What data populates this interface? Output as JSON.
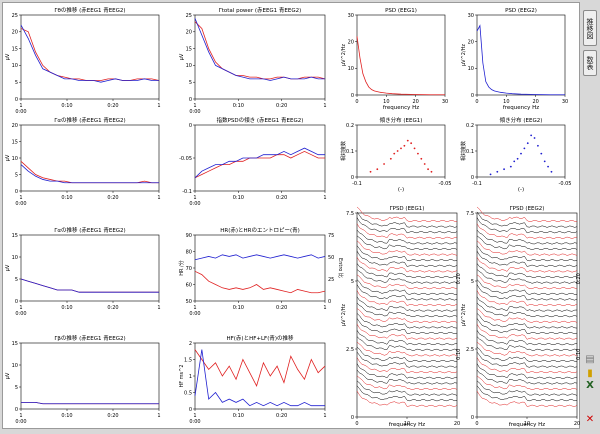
{
  "panels": [
    {
      "id": "p1",
      "title": "Γθの推移 (赤EEG1 青EEG2)",
      "ylabel": "μV",
      "yticks": [
        "0",
        "5",
        "10",
        "15",
        "20",
        "25"
      ],
      "xticks": [
        "1",
        "0:10",
        "0:20",
        "1"
      ],
      "xl2": [
        "0:00",
        "",
        "",
        ""
      ]
    },
    {
      "id": "p2",
      "title": "Γtotal power (赤EEG1 青EEG2)",
      "ylabel": "μV",
      "yticks": [
        "0",
        "5",
        "10",
        "15",
        "20",
        "25"
      ],
      "xticks": [
        "1",
        "0:10",
        "0:20",
        "1"
      ],
      "xl2": [
        "0:00",
        "",
        "",
        ""
      ]
    },
    {
      "id": "p3",
      "title": "Γαの推移 (赤EEG1 青EEG2)",
      "ylabel": "μV",
      "yticks": [
        "0",
        "5",
        "10",
        "15",
        "20"
      ],
      "xticks": [
        "1",
        "0:10",
        "0:20",
        "1"
      ],
      "xl2": [
        "0:00",
        "",
        "",
        ""
      ]
    },
    {
      "id": "p4",
      "title": "指数PSDの傾き (赤EEG1 青EEG2)",
      "ylabel": "",
      "yticks": [
        "-0.1",
        "-0.05",
        "0"
      ],
      "xticks": [
        "1",
        "0:10",
        "0:20",
        "1"
      ],
      "xl2": [
        "0:00",
        "",
        "",
        ""
      ]
    },
    {
      "id": "p5",
      "title": "Γαの推移 (赤EEG1 青EEG2)",
      "ylabel": "μV",
      "yticks": [
        "0",
        "5",
        "10",
        "15"
      ],
      "xticks": [
        "1",
        "0:10",
        "0:20",
        "1"
      ],
      "xl2": [
        "0:00",
        "",
        "",
        ""
      ]
    },
    {
      "id": "p6",
      "title": "HR(赤)とHRのエントロピー(青)",
      "ylabel": "HR /分",
      "ylabel2": "Entro 比",
      "yticks": [
        "50",
        "60",
        "70",
        "80",
        "90"
      ],
      "yticks2": [
        "0",
        "25",
        "50",
        "75"
      ],
      "xticks": [
        "1",
        "0:10",
        "0:20",
        "1"
      ],
      "xl2": [
        "0:00",
        "",
        "",
        ""
      ]
    },
    {
      "id": "p7",
      "title": "Γβの推移 (赤EEG1 青EEG2)",
      "ylabel": "μV",
      "yticks": [
        "0",
        "5",
        "10",
        "15"
      ],
      "xticks": [
        "1",
        "0:10",
        "0:20",
        "1"
      ],
      "xl2": [
        "0:00",
        "",
        "",
        ""
      ]
    },
    {
      "id": "p8",
      "title": "HF(赤)とHF+LF(青)の推移",
      "ylabel": "HF ms^2",
      "yticks": [
        "0",
        "0.5",
        "1",
        "1.5",
        "2"
      ],
      "xticks": [
        "1",
        "0:10",
        "0:20",
        "1"
      ],
      "xl2": [
        "0:00",
        "",
        "",
        ""
      ]
    },
    {
      "id": "p9",
      "title": "PSD (EEG1)",
      "ylabel": "μV^2/Hz",
      "xlabel": "frequency Hz",
      "yticks": [
        "0",
        "10",
        "20",
        "30"
      ],
      "xticks": [
        "0",
        "10",
        "20",
        "30"
      ]
    },
    {
      "id": "p10",
      "title": "PSD (EEG2)",
      "ylabel": "μV^2/Hz",
      "xlabel": "frequency Hz",
      "yticks": [
        "0",
        "10",
        "20",
        "30"
      ],
      "xticks": [
        "0",
        "10",
        "20",
        "30"
      ]
    },
    {
      "id": "p11",
      "title": "傾き分布 (EEG1)",
      "ylabel": "相対度数",
      "xlabel": "(-)",
      "yticks": [
        "0",
        "0.1",
        "0.2"
      ],
      "xticks": [
        "-0.1",
        "-0.05"
      ]
    },
    {
      "id": "p12",
      "title": "傾き分布 (EEG2)",
      "ylabel": "相対度数",
      "xlabel": "(-)",
      "yticks": [
        "0",
        "0.1",
        "0.2"
      ],
      "xticks": [
        "-0.1",
        "-0.05"
      ]
    },
    {
      "id": "p13",
      "title": "ΓPSD (EEG1)",
      "ylabel": "μV^2/Hz",
      "xlabel": "frequency Hz",
      "yticks": [
        "0",
        "2.5",
        "5",
        "7.5"
      ],
      "xticks": [
        "0",
        "10",
        "20"
      ],
      "ztitle": "0:10",
      "ztitle2": "0:20"
    },
    {
      "id": "p14",
      "title": "ΓPSD (EEG2)",
      "ylabel": "μV^2/Hz",
      "xlabel": "frequency Hz",
      "yticks": [
        "0",
        "2.5",
        "5",
        "7.5"
      ],
      "xticks": [
        "0",
        "10",
        "20"
      ],
      "ztitle": "0:10",
      "ztitle2": "0:20"
    }
  ],
  "sidebar": {
    "tab1": "推移図",
    "tab2": "数表"
  },
  "colors": {
    "eeg1": "#e02020",
    "eeg2": "#2020d0",
    "axis": "#000000"
  },
  "chart_data": [
    {
      "type": "line",
      "panel": "p1",
      "series": [
        {
          "color": "red",
          "values": [
            21,
            20,
            14,
            10,
            8,
            7,
            6.5,
            6,
            6,
            5.5,
            5.5,
            5.5,
            6,
            6,
            5.5,
            5.5,
            6,
            6,
            6,
            5.5
          ]
        },
        {
          "color": "blue",
          "values": [
            22,
            18,
            13,
            9,
            8,
            7,
            6,
            6,
            5.5,
            5.5,
            5.5,
            5,
            5.5,
            6,
            5.5,
            5.5,
            5.5,
            6,
            5.5,
            5.5
          ]
        }
      ],
      "ylim": [
        0,
        25
      ]
    },
    {
      "type": "line",
      "panel": "p2",
      "series": [
        {
          "color": "red",
          "values": [
            23,
            21,
            15,
            11,
            9,
            8,
            7,
            7,
            6.5,
            6.5,
            6,
            6,
            6.5,
            6.5,
            6,
            6,
            6.5,
            6.5,
            6.5,
            6
          ]
        },
        {
          "color": "blue",
          "values": [
            24,
            19,
            14,
            10,
            9,
            8,
            7,
            6.5,
            6,
            6,
            6,
            5.5,
            6,
            6.5,
            6,
            6,
            6,
            6.5,
            6,
            6
          ]
        }
      ],
      "ylim": [
        0,
        25
      ]
    },
    {
      "type": "line",
      "panel": "p3",
      "series": [
        {
          "color": "red",
          "values": [
            9,
            7,
            5,
            4,
            3.5,
            3,
            3,
            2.5,
            2.5,
            2.5,
            2.5,
            2.5,
            2.5,
            2.5,
            2.5,
            2.5,
            2.5,
            3,
            2.5,
            2.5
          ]
        },
        {
          "color": "blue",
          "values": [
            8,
            6,
            4.5,
            3.5,
            3,
            3,
            2.5,
            2.5,
            2.5,
            2.5,
            2.5,
            2.5,
            2.5,
            2.5,
            2.5,
            2.5,
            2.5,
            2.5,
            2.5,
            2.5
          ]
        }
      ],
      "ylim": [
        0,
        20
      ]
    },
    {
      "type": "line",
      "panel": "p4",
      "series": [
        {
          "color": "red",
          "values": [
            -0.1,
            -0.095,
            -0.09,
            -0.085,
            -0.08,
            -0.08,
            -0.075,
            -0.075,
            -0.07,
            -0.07,
            -0.07,
            -0.07,
            -0.065,
            -0.065,
            -0.07,
            -0.065,
            -0.06,
            -0.065,
            -0.07,
            -0.07
          ]
        },
        {
          "color": "blue",
          "values": [
            -0.1,
            -0.09,
            -0.085,
            -0.08,
            -0.08,
            -0.075,
            -0.075,
            -0.07,
            -0.07,
            -0.07,
            -0.065,
            -0.065,
            -0.065,
            -0.06,
            -0.065,
            -0.06,
            -0.055,
            -0.06,
            -0.065,
            -0.065
          ]
        }
      ],
      "ylim": [
        -0.12,
        -0.02
      ]
    },
    {
      "type": "line",
      "panel": "p5",
      "series": [
        {
          "color": "red",
          "values": [
            5,
            4.5,
            4,
            3.5,
            3,
            2.5,
            2.5,
            2.5,
            2,
            2,
            2,
            2,
            2,
            2,
            2,
            2,
            2,
            2,
            2,
            2
          ]
        },
        {
          "color": "blue",
          "values": [
            5,
            4.5,
            4,
            3.5,
            3,
            2.5,
            2.5,
            2.5,
            2,
            2,
            2,
            2,
            2,
            2,
            2,
            2,
            2,
            2,
            2,
            2
          ]
        }
      ],
      "ylim": [
        0,
        15
      ]
    },
    {
      "type": "line",
      "panel": "p6",
      "series": [
        {
          "color": "red",
          "values": [
            68,
            66,
            62,
            60,
            58,
            57,
            58,
            57,
            58,
            60,
            57,
            58,
            57,
            56,
            55,
            57,
            56,
            55,
            55,
            56
          ]
        },
        {
          "color": "blue",
          "values": [
            75,
            76,
            77,
            76,
            78,
            77,
            78,
            76,
            77,
            78,
            77,
            76,
            77,
            78,
            77,
            76,
            77,
            78,
            76,
            77
          ]
        }
      ],
      "ylim": [
        50,
        90
      ]
    },
    {
      "type": "line",
      "panel": "p7",
      "series": [
        {
          "color": "red",
          "values": [
            1.5,
            1.5,
            1.5,
            1.2,
            1.2,
            1.2,
            1.2,
            1.2,
            1.2,
            1.2,
            1.2,
            1.2,
            1.2,
            1.2,
            1.2,
            1.2,
            1.2,
            1.2,
            1.2,
            1.2
          ]
        },
        {
          "color": "blue",
          "values": [
            1.5,
            1.5,
            1.5,
            1.2,
            1.2,
            1.2,
            1.2,
            1.2,
            1.2,
            1.2,
            1.2,
            1.2,
            1.2,
            1.2,
            1.2,
            1.2,
            1.2,
            1.2,
            1.2,
            1.2
          ]
        }
      ],
      "ylim": [
        0,
        15
      ]
    },
    {
      "type": "line",
      "panel": "p8",
      "series": [
        {
          "color": "red",
          "values": [
            1.8,
            1.5,
            1.2,
            1.4,
            1.0,
            1.3,
            0.9,
            1.5,
            1.1,
            0.7,
            1.4,
            1.0,
            1.3,
            0.8,
            1.6,
            1.2,
            0.9,
            1.5,
            1.1,
            1.3
          ]
        },
        {
          "color": "blue",
          "values": [
            0.4,
            1.8,
            0.3,
            0.5,
            0.2,
            0.3,
            0.2,
            0.3,
            0.1,
            0.2,
            0.1,
            0.2,
            0.1,
            0.2,
            0.1,
            0.1,
            0.2,
            0.1,
            0.1,
            0.1
          ]
        }
      ],
      "ylim": [
        0,
        2
      ]
    },
    {
      "type": "line",
      "panel": "p9",
      "x": [
        0,
        1,
        2,
        3,
        4,
        5,
        6,
        8,
        10,
        12,
        15,
        20,
        25,
        30
      ],
      "series": [
        {
          "color": "red",
          "values": [
            22,
            14,
            8,
            5,
            3,
            2,
            1.5,
            1,
            0.7,
            0.5,
            0.3,
            0.2,
            0.1,
            0.1
          ]
        }
      ],
      "ylim": [
        0,
        30
      ],
      "xlim": [
        0,
        30
      ]
    },
    {
      "type": "line",
      "panel": "p10",
      "x": [
        0,
        1,
        2,
        3,
        4,
        5,
        6,
        8,
        10,
        12,
        15,
        20,
        25,
        30
      ],
      "series": [
        {
          "color": "blue",
          "values": [
            24,
            26,
            12,
            5,
            3,
            2,
            1.5,
            1,
            0.7,
            0.5,
            0.3,
            0.2,
            0.1,
            0.1
          ]
        }
      ],
      "ylim": [
        0,
        30
      ],
      "xlim": [
        0,
        30
      ]
    },
    {
      "type": "scatter",
      "panel": "p11",
      "x": [
        -0.13,
        -0.12,
        -0.11,
        -0.1,
        -0.095,
        -0.09,
        -0.085,
        -0.08,
        -0.075,
        -0.07,
        -0.065,
        -0.06,
        -0.055,
        -0.05,
        -0.045,
        -0.04
      ],
      "series": [
        {
          "color": "red",
          "values": [
            0.02,
            0.03,
            0.05,
            0.07,
            0.09,
            0.1,
            0.11,
            0.12,
            0.14,
            0.13,
            0.11,
            0.09,
            0.07,
            0.05,
            0.03,
            0.02
          ]
        }
      ],
      "ylim": [
        0,
        0.2
      ],
      "xlim": [
        -0.15,
        -0.02
      ]
    },
    {
      "type": "scatter",
      "panel": "p12",
      "x": [
        -0.13,
        -0.12,
        -0.11,
        -0.1,
        -0.095,
        -0.09,
        -0.085,
        -0.08,
        -0.075,
        -0.07,
        -0.065,
        -0.06,
        -0.055,
        -0.05,
        -0.045,
        -0.04
      ],
      "series": [
        {
          "color": "blue",
          "values": [
            0.01,
            0.02,
            0.03,
            0.04,
            0.06,
            0.07,
            0.09,
            0.11,
            0.13,
            0.16,
            0.15,
            0.12,
            0.09,
            0.06,
            0.04,
            0.02
          ]
        }
      ],
      "ylim": [
        0,
        0.2
      ],
      "xlim": [
        -0.15,
        -0.02
      ]
    }
  ]
}
